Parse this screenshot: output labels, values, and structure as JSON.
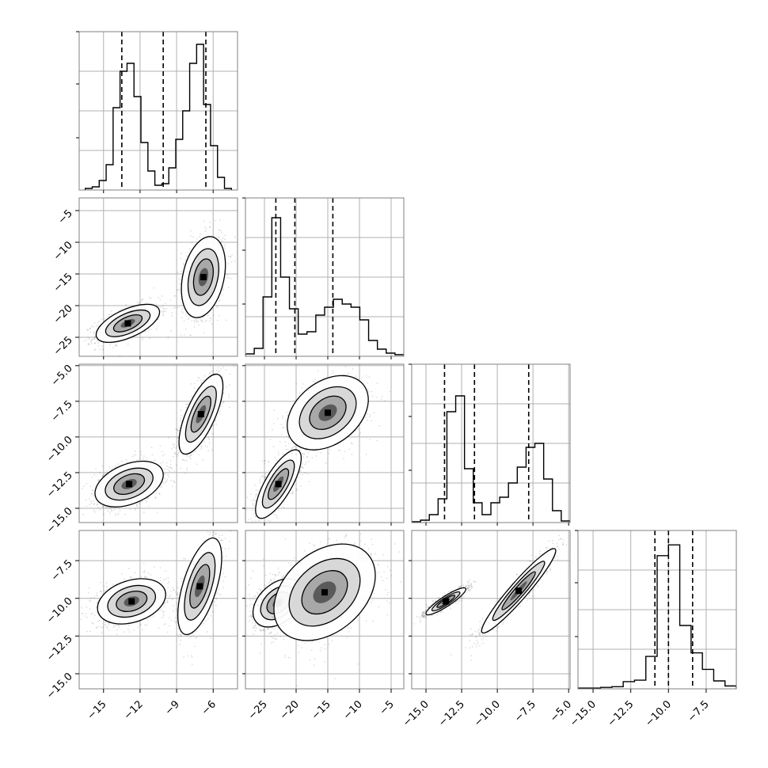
{
  "chart_data": {
    "type": "corner",
    "n_params": 4,
    "grid": true,
    "params": [
      {
        "range": [
          -17,
          -4
        ],
        "ticks": [
          -15,
          -12,
          -9,
          -6
        ],
        "tick_labels": [
          "−15",
          "−12",
          "−9",
          "−6"
        ]
      },
      {
        "range": [
          -28,
          -3
        ],
        "ticks": [
          -25,
          -20,
          -15,
          -10,
          -5
        ],
        "tick_labels": [
          "−25",
          "−20",
          "−15",
          "−10",
          "−5"
        ]
      },
      {
        "range": [
          -16,
          -4.9
        ],
        "ticks": [
          -15,
          -12.5,
          -10,
          -7.5,
          -5
        ],
        "tick_labels": [
          "−15.0",
          "−12.5",
          "−10.0",
          "−7.5",
          "−5.0"
        ]
      },
      {
        "range": [
          -16,
          -5.5
        ],
        "ticks": [
          -15,
          -12.5,
          -10,
          -7.5
        ],
        "tick_labels": [
          "−15.0",
          "−12.5",
          "−10.0",
          "−7.5"
        ]
      }
    ],
    "histograms": [
      {
        "edges_range": [
          -16.5,
          -4.5
        ],
        "counts": [
          1,
          2,
          6,
          16,
          52,
          75,
          80,
          59,
          30,
          12,
          3,
          4,
          14,
          32,
          50,
          80,
          92,
          54,
          28,
          8,
          1
        ],
        "ymax": 100,
        "quantiles": [
          -13.5,
          -10.1,
          -6.6
        ]
      },
      {
        "edges_range": [
          -28,
          -3
        ],
        "counts": [
          3,
          10,
          75,
          175,
          100,
          60,
          28,
          31,
          52,
          62,
          72,
          66,
          62,
          46,
          20,
          9,
          4,
          2
        ],
        "ymax": 200,
        "quantiles": [
          -23.2,
          -20.2,
          -14.2
        ]
      },
      {
        "edges_range": [
          -16,
          -4.9
        ],
        "counts": [
          1,
          3,
          10,
          30,
          140,
          160,
          68,
          25,
          10,
          25,
          32,
          50,
          70,
          95,
          100,
          55,
          15,
          2
        ],
        "ymax": 200,
        "quantiles": [
          -13.7,
          -11.6,
          -7.8
        ]
      },
      {
        "edges_range": [
          -16,
          -5.5
        ],
        "counts": [
          1,
          1,
          2,
          3,
          10,
          12,
          45,
          185,
          200,
          88,
          50,
          27,
          11,
          4
        ],
        "ymax": 220,
        "quantiles": [
          -10.9,
          -10.0,
          -8.4
        ]
      }
    ],
    "pairs": [
      {
        "xi": 0,
        "yi": 1,
        "clusters": [
          {
            "cx": -13.0,
            "cy": -22.8,
            "sx": 1.3,
            "sy": 1.5,
            "rho": 0.6,
            "n": 1100
          },
          {
            "cx": -6.8,
            "cy": -15.5,
            "sx": 0.9,
            "sy": 3.2,
            "rho": 0.3,
            "n": 900
          }
        ]
      },
      {
        "xi": 0,
        "yi": 2,
        "clusters": [
          {
            "cx": -12.9,
            "cy": -13.3,
            "sx": 1.4,
            "sy": 0.8,
            "rho": 0.4,
            "n": 1100
          },
          {
            "cx": -7.0,
            "cy": -8.4,
            "sx": 0.9,
            "sy": 1.4,
            "rho": 0.7,
            "n": 900
          }
        ]
      },
      {
        "xi": 0,
        "yi": 3,
        "clusters": [
          {
            "cx": -12.7,
            "cy": -10.2,
            "sx": 1.4,
            "sy": 0.75,
            "rho": 0.3,
            "n": 1100
          },
          {
            "cx": -7.1,
            "cy": -9.2,
            "sx": 0.9,
            "sy": 1.6,
            "rho": 0.6,
            "n": 900
          }
        ]
      },
      {
        "xi": 1,
        "yi": 2,
        "clusters": [
          {
            "cx": -22.8,
            "cy": -13.3,
            "sx": 1.8,
            "sy": 1.2,
            "rho": 0.75,
            "n": 1100
          },
          {
            "cx": -15.0,
            "cy": -8.3,
            "sx": 3.2,
            "sy": 1.3,
            "rho": 0.35,
            "n": 900
          }
        ]
      },
      {
        "xi": 1,
        "yi": 3,
        "clusters": [
          {
            "cx": -22.8,
            "cy": -10.3,
            "sx": 2.0,
            "sy": 0.8,
            "rho": 0.4,
            "n": 1100
          },
          {
            "cx": -15.5,
            "cy": -9.6,
            "sx": 4.0,
            "sy": 1.6,
            "rho": 0.35,
            "n": 900
          }
        ]
      },
      {
        "xi": 2,
        "yi": 3,
        "clusters": [
          {
            "cx": -13.6,
            "cy": -10.2,
            "sx": 0.7,
            "sy": 0.45,
            "rho": 0.9,
            "n": 1100
          },
          {
            "cx": -8.5,
            "cy": -9.5,
            "sx": 1.3,
            "sy": 1.4,
            "rho": 0.95,
            "n": 900
          }
        ]
      }
    ]
  }
}
